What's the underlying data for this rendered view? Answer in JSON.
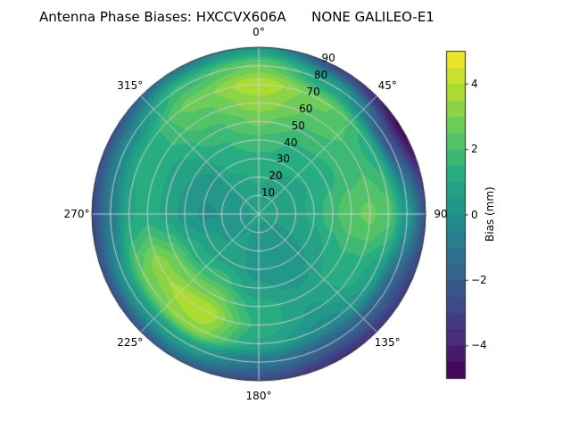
{
  "chart_data": {
    "type": "polar_contour",
    "title": "Antenna Phase Biases: HXCCVX606A      NONE GALILEO-E1",
    "colormap": "viridis",
    "vmin": -5,
    "vmax": 5,
    "level_step": 0.5,
    "colormap_stops": [
      [
        0.0,
        "#440154"
      ],
      [
        0.125,
        "#472d7b"
      ],
      [
        0.25,
        "#3b528b"
      ],
      [
        0.375,
        "#2c728e"
      ],
      [
        0.5,
        "#21918c"
      ],
      [
        0.625,
        "#27ad81"
      ],
      [
        0.75,
        "#5ec962"
      ],
      [
        0.875,
        "#aadc32"
      ],
      [
        1.0,
        "#fde725"
      ]
    ],
    "colorbar": {
      "label": "Bias (mm)",
      "ticks": [
        4,
        2,
        0,
        -2,
        -4
      ]
    },
    "angular_ticks": [
      {
        "angle": 0,
        "label": "0°"
      },
      {
        "angle": 45,
        "label": "45°"
      },
      {
        "angle": 90,
        "label": "90"
      },
      {
        "angle": 135,
        "label": "135°"
      },
      {
        "angle": 180,
        "label": "180°"
      },
      {
        "angle": 225,
        "label": "225°"
      },
      {
        "angle": 270,
        "label": "270°"
      },
      {
        "angle": 315,
        "label": "315°"
      }
    ],
    "radial_ticks": [
      {
        "radius": 10,
        "label": "10"
      },
      {
        "radius": 20,
        "label": "20"
      },
      {
        "radius": 30,
        "label": "30"
      },
      {
        "radius": 40,
        "label": "40"
      },
      {
        "radius": 50,
        "label": "50"
      },
      {
        "radius": 60,
        "label": "60"
      },
      {
        "radius": 70,
        "label": "70"
      },
      {
        "radius": 80,
        "label": "80"
      },
      {
        "radius": 90,
        "label": "90"
      }
    ],
    "radial_label_azimuth_deg": 24,
    "azimuth_deg": [
      0,
      30,
      60,
      90,
      120,
      150,
      180,
      210,
      240,
      270,
      300,
      330,
      360
    ],
    "zenith_deg": [
      0,
      10,
      20,
      30,
      40,
      50,
      60,
      70,
      80,
      90
    ],
    "bias_mm": [
      [
        0.6,
        0.6,
        0.6,
        0.6,
        0.6,
        0.6,
        0.6,
        0.6,
        0.6,
        0.6,
        0.6,
        0.6,
        0.6
      ],
      [
        0.8,
        0.7,
        0.6,
        0.6,
        0.5,
        0.4,
        0.4,
        0.5,
        0.4,
        0.3,
        0.5,
        0.7,
        0.8
      ],
      [
        1.1,
        0.9,
        0.8,
        0.8,
        0.5,
        0.2,
        0.3,
        0.6,
        0.4,
        0.0,
        0.3,
        0.9,
        1.1
      ],
      [
        1.4,
        1.1,
        1.0,
        1.2,
        0.6,
        0.0,
        0.2,
        0.9,
        0.7,
        -0.1,
        0.2,
        1.1,
        1.4
      ],
      [
        1.9,
        1.4,
        1.3,
        1.9,
        1.0,
        0.3,
        0.6,
        1.7,
        1.3,
        0.3,
        0.5,
        1.4,
        1.9
      ],
      [
        2.6,
        1.9,
        1.6,
        2.4,
        1.4,
        0.7,
        1.2,
        2.9,
        2.6,
        0.9,
        0.9,
        1.8,
        2.6
      ],
      [
        3.3,
        2.4,
        1.8,
        2.6,
        1.3,
        0.4,
        1.4,
        4.0,
        3.4,
        1.3,
        1.3,
        2.3,
        3.3
      ],
      [
        3.9,
        2.6,
        1.2,
        2.2,
        0.6,
        -0.2,
        0.9,
        3.4,
        2.6,
        0.9,
        1.1,
        2.7,
        3.9
      ],
      [
        2.6,
        0.6,
        -2.4,
        0.2,
        -1.8,
        -1.9,
        -1.1,
        0.6,
        0.2,
        -0.9,
        -0.3,
        1.8,
        2.6
      ],
      [
        0.3,
        -2.8,
        -4.7,
        -2.2,
        -3.2,
        -3.6,
        -2.7,
        -1.7,
        -2.3,
        -2.7,
        -2.2,
        -0.8,
        0.3
      ]
    ]
  }
}
